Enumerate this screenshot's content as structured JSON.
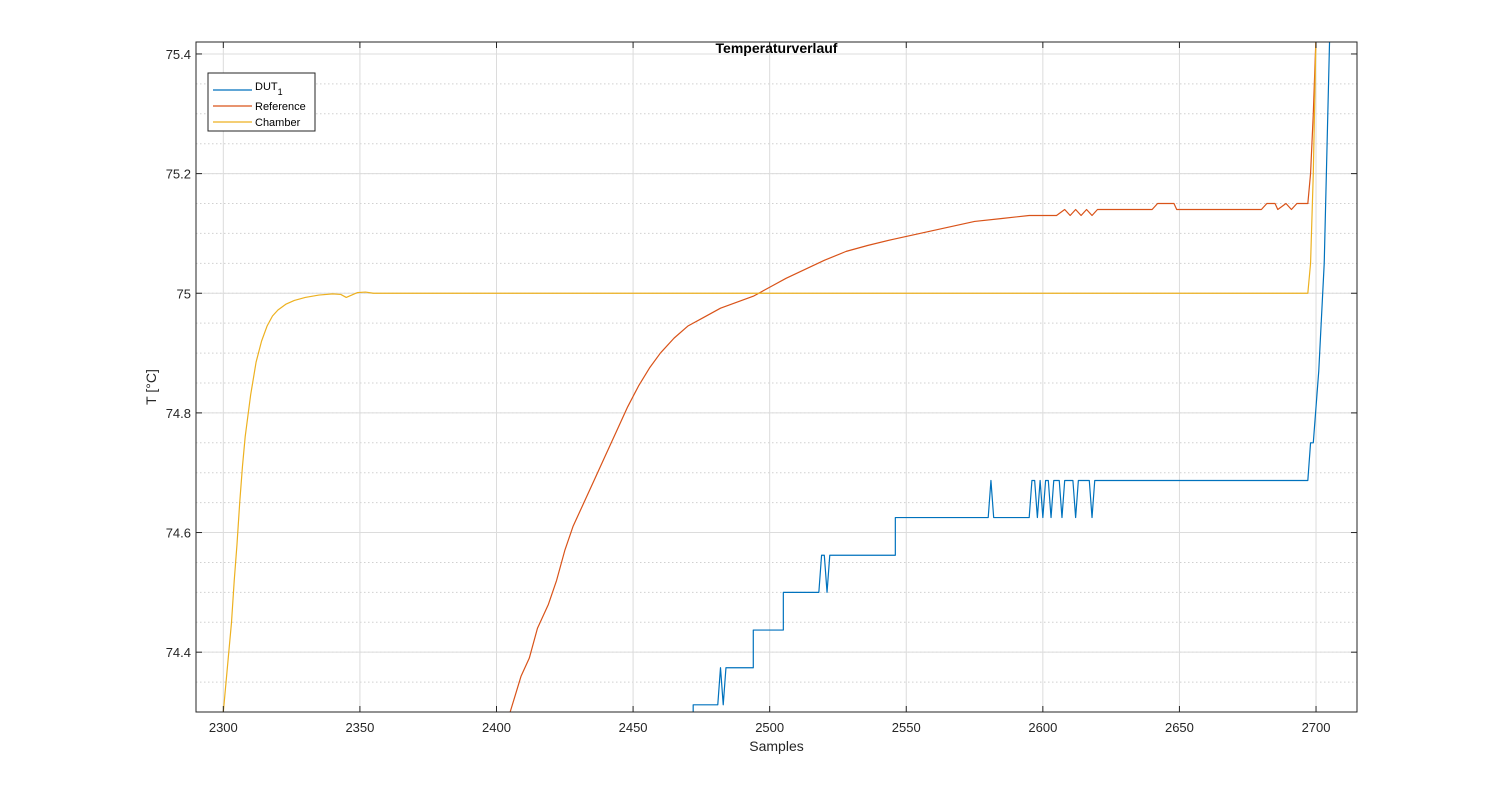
{
  "chart_data": {
    "type": "line",
    "title": "Temperaturverlauf",
    "xlabel": "Samples",
    "ylabel": "T [°C]",
    "xlim": [
      2290,
      2715
    ],
    "ylim": [
      74.3,
      75.42
    ],
    "xticks": [
      2300,
      2350,
      2400,
      2450,
      2500,
      2550,
      2600,
      2650,
      2700
    ],
    "yticks": [
      74.4,
      74.6,
      74.8,
      75,
      75.2,
      75.4
    ],
    "ytick_labels": [
      "74.4",
      "74.6",
      "74.8",
      "75",
      "75.2",
      "75.4"
    ],
    "grid": "major and minor",
    "legend_position": "top-left",
    "colors": {
      "DUT_1": "#0072BD",
      "Reference": "#D95319",
      "Chamber": "#EDB120"
    },
    "series": [
      {
        "name": "DUT_1",
        "legend_base": "DUT",
        "legend_sub": "1",
        "color": "#0072BD",
        "points": [
          [
            2472,
            74.3
          ],
          [
            2472,
            74.312
          ],
          [
            2481,
            74.312
          ],
          [
            2482,
            74.374
          ],
          [
            2483,
            74.312
          ],
          [
            2484,
            74.374
          ],
          [
            2494,
            74.374
          ],
          [
            2494,
            74.437
          ],
          [
            2505,
            74.437
          ],
          [
            2505,
            74.5
          ],
          [
            2518,
            74.5
          ],
          [
            2519,
            74.562
          ],
          [
            2520,
            74.562
          ],
          [
            2521,
            74.5
          ],
          [
            2522,
            74.562
          ],
          [
            2546,
            74.562
          ],
          [
            2546,
            74.625
          ],
          [
            2580,
            74.625
          ],
          [
            2581,
            74.687
          ],
          [
            2582,
            74.625
          ],
          [
            2595,
            74.625
          ],
          [
            2596,
            74.687
          ],
          [
            2597,
            74.687
          ],
          [
            2598,
            74.625
          ],
          [
            2599,
            74.687
          ],
          [
            2600,
            74.625
          ],
          [
            2601,
            74.687
          ],
          [
            2602,
            74.687
          ],
          [
            2603,
            74.625
          ],
          [
            2604,
            74.687
          ],
          [
            2606,
            74.687
          ],
          [
            2607,
            74.625
          ],
          [
            2608,
            74.687
          ],
          [
            2611,
            74.687
          ],
          [
            2612,
            74.625
          ],
          [
            2613,
            74.687
          ],
          [
            2617,
            74.687
          ],
          [
            2618,
            74.625
          ],
          [
            2619,
            74.687
          ],
          [
            2697,
            74.687
          ],
          [
            2698,
            74.75
          ],
          [
            2699,
            74.75
          ],
          [
            2701,
            74.87
          ],
          [
            2703,
            75.05
          ],
          [
            2705,
            75.43
          ]
        ]
      },
      {
        "name": "Reference",
        "color": "#D95319",
        "points": [
          [
            2405,
            74.3
          ],
          [
            2407,
            74.33
          ],
          [
            2409,
            74.36
          ],
          [
            2412,
            74.39
          ],
          [
            2415,
            74.44
          ],
          [
            2419,
            74.48
          ],
          [
            2422,
            74.52
          ],
          [
            2425,
            74.57
          ],
          [
            2428,
            74.61
          ],
          [
            2432,
            74.65
          ],
          [
            2436,
            74.69
          ],
          [
            2440,
            74.73
          ],
          [
            2444,
            74.77
          ],
          [
            2448,
            74.81
          ],
          [
            2452,
            74.845
          ],
          [
            2456,
            74.875
          ],
          [
            2460,
            74.9
          ],
          [
            2465,
            74.925
          ],
          [
            2470,
            74.945
          ],
          [
            2476,
            74.96
          ],
          [
            2482,
            74.975
          ],
          [
            2488,
            74.985
          ],
          [
            2494,
            74.995
          ],
          [
            2500,
            75.01
          ],
          [
            2506,
            75.025
          ],
          [
            2513,
            75.04
          ],
          [
            2520,
            75.055
          ],
          [
            2528,
            75.07
          ],
          [
            2536,
            75.08
          ],
          [
            2545,
            75.09
          ],
          [
            2555,
            75.1
          ],
          [
            2565,
            75.11
          ],
          [
            2575,
            75.12
          ],
          [
            2585,
            75.125
          ],
          [
            2595,
            75.13
          ],
          [
            2605,
            75.13
          ],
          [
            2608,
            75.14
          ],
          [
            2610,
            75.13
          ],
          [
            2612,
            75.14
          ],
          [
            2614,
            75.13
          ],
          [
            2616,
            75.14
          ],
          [
            2618,
            75.13
          ],
          [
            2620,
            75.14
          ],
          [
            2640,
            75.14
          ],
          [
            2642,
            75.15
          ],
          [
            2648,
            75.15
          ],
          [
            2649,
            75.14
          ],
          [
            2680,
            75.14
          ],
          [
            2682,
            75.15
          ],
          [
            2685,
            75.15
          ],
          [
            2686,
            75.14
          ],
          [
            2689,
            75.15
          ],
          [
            2691,
            75.14
          ],
          [
            2693,
            75.15
          ],
          [
            2697,
            75.15
          ],
          [
            2698,
            75.2
          ],
          [
            2699,
            75.3
          ],
          [
            2700,
            75.43
          ]
        ]
      },
      {
        "name": "Chamber",
        "color": "#EDB120",
        "points": [
          [
            2300,
            74.3
          ],
          [
            2301,
            74.35
          ],
          [
            2302,
            74.4
          ],
          [
            2303,
            74.45
          ],
          [
            2304,
            74.52
          ],
          [
            2305,
            74.58
          ],
          [
            2306,
            74.65
          ],
          [
            2307,
            74.71
          ],
          [
            2308,
            74.76
          ],
          [
            2310,
            74.83
          ],
          [
            2312,
            74.885
          ],
          [
            2314,
            74.92
          ],
          [
            2316,
            74.945
          ],
          [
            2318,
            74.962
          ],
          [
            2320,
            74.972
          ],
          [
            2323,
            74.982
          ],
          [
            2326,
            74.988
          ],
          [
            2330,
            74.993
          ],
          [
            2335,
            74.997
          ],
          [
            2340,
            74.999
          ],
          [
            2343,
            74.998
          ],
          [
            2345,
            74.993
          ],
          [
            2347,
            74.997
          ],
          [
            2349,
            75.001
          ],
          [
            2352,
            75.002
          ],
          [
            2355,
            75.0
          ],
          [
            2400,
            75.0
          ],
          [
            2450,
            75.0
          ],
          [
            2500,
            75.0
          ],
          [
            2550,
            75.0
          ],
          [
            2600,
            75.0
          ],
          [
            2650,
            75.0
          ],
          [
            2697,
            75.0
          ],
          [
            2698,
            75.05
          ],
          [
            2699,
            75.2
          ],
          [
            2700,
            75.43
          ]
        ]
      }
    ]
  }
}
